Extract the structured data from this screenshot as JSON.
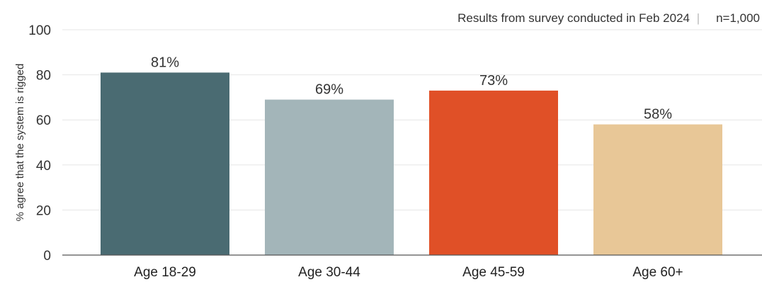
{
  "chart_data": {
    "type": "bar",
    "note": "Results from survey conducted in Feb 2024",
    "note_separator": "|",
    "sample_size": "n=1,000",
    "ylabel": "% agree that the system is rigged",
    "xlabel": "",
    "ylim": [
      0,
      100
    ],
    "yticks": [
      0,
      20,
      40,
      60,
      80,
      100
    ],
    "grid": true,
    "categories": [
      "Age 18-29",
      "Age 30-44",
      "Age 45-59",
      "Age 60+"
    ],
    "values": [
      81,
      69,
      73,
      58
    ],
    "data_labels": [
      "81%",
      "69%",
      "73%",
      "58%"
    ],
    "colors": [
      "#4a6b72",
      "#a3b5b9",
      "#e05027",
      "#e8c797"
    ]
  }
}
